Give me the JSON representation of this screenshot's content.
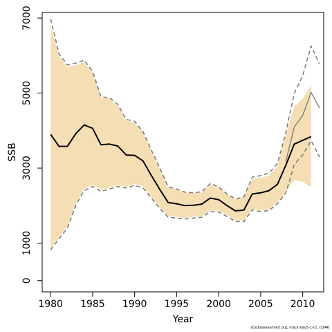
{
  "chart_data": {
    "type": "line",
    "title": "",
    "xlabel": "Year",
    "ylabel": "SSB",
    "xlim": [
      1979,
      2012.5
    ],
    "ylim": [
      -300,
      7150
    ],
    "x_ticks": [
      1980,
      1985,
      1990,
      1995,
      2000,
      2005,
      2010
    ],
    "y_ticks": [
      0,
      1000,
      3000,
      5000,
      7000
    ],
    "grid": false,
    "legend": "none",
    "band": {
      "x": [
        1980,
        1981,
        1982,
        1983,
        1984,
        1985,
        1986,
        1987,
        1988,
        1989,
        1990,
        1991,
        1992,
        1993,
        1994,
        1995,
        1996,
        1997,
        1998,
        1999,
        2000,
        2001,
        2002,
        2003,
        2004,
        2005,
        2006,
        2007,
        2008,
        2009,
        2010,
        2011
      ],
      "lower": [
        850,
        1150,
        1450,
        2050,
        2450,
        2550,
        2420,
        2480,
        2550,
        2500,
        2580,
        2510,
        2230,
        1950,
        1720,
        1700,
        1670,
        1700,
        1720,
        1870,
        1860,
        1740,
        1610,
        1600,
        1920,
        1870,
        1900,
        2080,
        2370,
        2680,
        2630,
        2500
      ],
      "upper": [
        6800,
        6000,
        5700,
        5750,
        5820,
        5550,
        4870,
        4860,
        4660,
        4270,
        4210,
        3960,
        3460,
        2980,
        2480,
        2420,
        2350,
        2330,
        2350,
        2570,
        2490,
        2300,
        2160,
        2220,
        2700,
        2740,
        2800,
        3050,
        3900,
        4650,
        4850,
        5200
      ],
      "color": "#f5deb3"
    },
    "series": [
      {
        "values": [
          3900,
          3580,
          3580,
          3920,
          4150,
          4060,
          3620,
          3640,
          3590,
          3350,
          3340,
          3190,
          2800,
          2430,
          2080,
          2050,
          2000,
          2010,
          2040,
          2200,
          2160,
          2000,
          1860,
          1880,
          2310,
          2340,
          2400,
          2570,
          3080,
          3640,
          3740,
          3840
        ],
        "color": "#000000",
        "style": "solid",
        "width": 2
      },
      {
        "x": [
          2008,
          2009,
          2010,
          2011,
          2012
        ],
        "values": [
          3180,
          4100,
          4400,
          5020,
          4600
        ],
        "color": "#777777",
        "style": "solid",
        "width": 1.3
      },
      {
        "values": [
          6980,
          6050,
          5750,
          5800,
          5880,
          5580,
          4900,
          4880,
          4700,
          4300,
          4250,
          3970,
          3480,
          3000,
          2500,
          2440,
          2360,
          2340,
          2370,
          2590,
          2500,
          2310,
          2180,
          2230,
          2760,
          2800,
          2870,
          3120,
          3950,
          5000,
          5460,
          6260,
          5780
        ],
        "x": [
          1980,
          1981,
          1982,
          1983,
          1984,
          1985,
          1986,
          1987,
          1988,
          1989,
          1990,
          1991,
          1992,
          1993,
          1994,
          1995,
          1996,
          1997,
          1998,
          1999,
          2000,
          2001,
          2002,
          2003,
          2004,
          2005,
          2006,
          2007,
          2008,
          2009,
          2010,
          2011,
          2012
        ],
        "color": "#777777",
        "style": "dashed",
        "width": 1.5
      },
      {
        "values": [
          820,
          1110,
          1400,
          2010,
          2400,
          2510,
          2380,
          2440,
          2510,
          2470,
          2540,
          2470,
          2200,
          1920,
          1690,
          1670,
          1640,
          1670,
          1690,
          1840,
          1830,
          1710,
          1580,
          1570,
          1890,
          1840,
          1870,
          2050,
          2340,
          3100,
          3350,
          3730,
          3300
        ],
        "x": [
          1980,
          1981,
          1982,
          1983,
          1984,
          1985,
          1986,
          1987,
          1988,
          1989,
          1990,
          1991,
          1992,
          1993,
          1994,
          1995,
          1996,
          1997,
          1998,
          1999,
          2000,
          2001,
          2002,
          2003,
          2004,
          2005,
          2006,
          2007,
          2008,
          2009,
          2010,
          2011,
          2012
        ],
        "color": "#777777",
        "style": "dashed",
        "width": 1.5
      }
    ]
  },
  "footer": "stockassessment.org, mack-day5-1-r2, r2946"
}
